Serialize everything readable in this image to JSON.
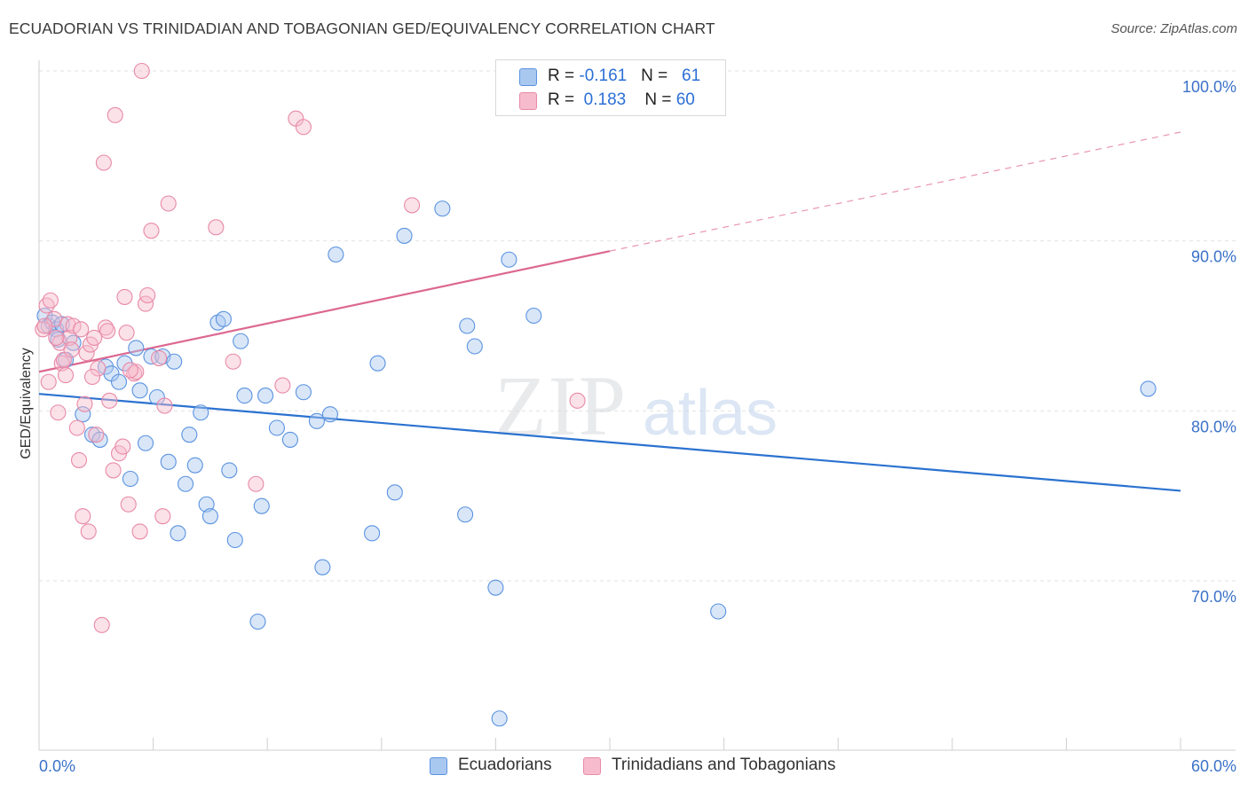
{
  "header": {
    "title": "ECUADORIAN VS TRINIDADIAN AND TOBAGONIAN GED/EQUIVALENCY CORRELATION CHART",
    "source": "Source: ZipAtlas.com"
  },
  "legend": {
    "rows": [
      {
        "r_label": "R = ",
        "r_value": "-0.161",
        "n_label": "N = ",
        "n_value": "61",
        "color": "#a9c8f0"
      },
      {
        "r_label": "R = ",
        "r_value": "0.183",
        "n_label": "N = ",
        "n_value": "60",
        "color": "#f6bccd"
      }
    ]
  },
  "watermark": {
    "zip": "ZIP",
    "atlas": "atlas"
  },
  "chart_data": {
    "type": "scatter",
    "title": "ECUADORIAN VS TRINIDADIAN AND TOBAGONIAN GED/EQUIVALENCY CORRELATION CHART",
    "xlabel": "",
    "ylabel": "GED/Equivalency",
    "xlim": [
      0,
      60
    ],
    "ylim": [
      60,
      102
    ],
    "x_tick_labels": [
      "0.0%",
      "60.0%"
    ],
    "y_ticks": [
      70,
      80,
      90,
      100
    ],
    "y_tick_labels": [
      "70.0%",
      "80.0%",
      "90.0%",
      "100.0%"
    ],
    "grid": true,
    "legend_position": "top-center",
    "series": [
      {
        "name": "Ecuadorians",
        "color": "#5b93e0",
        "fill": "#a9c8f0",
        "trend": {
          "x": [
            0,
            60
          ],
          "y": [
            81.0,
            75.3
          ],
          "color": "#2b72d0"
        },
        "points": [
          [
            0.3,
            85.6
          ],
          [
            0.5,
            85.0
          ],
          [
            0.7,
            85.2
          ],
          [
            0.9,
            84.8
          ],
          [
            1.0,
            84.2
          ],
          [
            1.4,
            83.0
          ],
          [
            1.8,
            84.0
          ],
          [
            2.3,
            79.8
          ],
          [
            2.8,
            78.6
          ],
          [
            3.2,
            78.3
          ],
          [
            3.5,
            82.6
          ],
          [
            3.8,
            82.2
          ],
          [
            4.2,
            81.7
          ],
          [
            4.5,
            82.8
          ],
          [
            4.8,
            76.0
          ],
          [
            5.1,
            83.7
          ],
          [
            5.3,
            81.2
          ],
          [
            5.6,
            78.1
          ],
          [
            5.9,
            83.2
          ],
          [
            6.2,
            80.8
          ],
          [
            6.5,
            83.2
          ],
          [
            6.8,
            77.0
          ],
          [
            7.1,
            82.9
          ],
          [
            7.3,
            72.8
          ],
          [
            7.7,
            75.7
          ],
          [
            7.9,
            78.6
          ],
          [
            8.2,
            76.8
          ],
          [
            8.5,
            79.9
          ],
          [
            8.8,
            74.5
          ],
          [
            9.0,
            73.8
          ],
          [
            9.4,
            85.2
          ],
          [
            9.7,
            85.4
          ],
          [
            10.0,
            76.5
          ],
          [
            10.3,
            72.4
          ],
          [
            10.6,
            84.1
          ],
          [
            10.8,
            80.9
          ],
          [
            11.5,
            67.6
          ],
          [
            11.7,
            74.4
          ],
          [
            11.9,
            80.9
          ],
          [
            12.5,
            79.0
          ],
          [
            13.2,
            78.3
          ],
          [
            13.9,
            81.1
          ],
          [
            14.6,
            79.4
          ],
          [
            14.9,
            70.8
          ],
          [
            15.3,
            79.8
          ],
          [
            15.6,
            89.2
          ],
          [
            17.5,
            72.8
          ],
          [
            17.8,
            82.8
          ],
          [
            18.7,
            75.2
          ],
          [
            19.2,
            90.3
          ],
          [
            21.2,
            91.9
          ],
          [
            22.4,
            73.9
          ],
          [
            22.5,
            85.0
          ],
          [
            22.9,
            83.8
          ],
          [
            24.0,
            69.6
          ],
          [
            24.2,
            61.9
          ],
          [
            24.7,
            88.9
          ],
          [
            26.0,
            85.6
          ],
          [
            35.7,
            68.2
          ],
          [
            58.3,
            81.3
          ],
          [
            1.2,
            85.1
          ]
        ]
      },
      {
        "name": "Trinidadians and Tobagonians",
        "color": "#e88aa8",
        "fill": "#f6bccd",
        "trend": {
          "x": [
            0,
            30
          ],
          "y": [
            82.3,
            89.4
          ],
          "color": "#dc6890"
        },
        "trend_extension": {
          "x": [
            30,
            60
          ],
          "y": [
            89.4,
            96.4
          ],
          "color": "#e896b0"
        },
        "points": [
          [
            0.2,
            84.8
          ],
          [
            0.4,
            86.2
          ],
          [
            0.5,
            81.7
          ],
          [
            0.6,
            86.5
          ],
          [
            0.8,
            85.4
          ],
          [
            1.0,
            79.9
          ],
          [
            1.1,
            84.0
          ],
          [
            1.2,
            82.8
          ],
          [
            1.4,
            82.1
          ],
          [
            1.5,
            85.1
          ],
          [
            1.6,
            84.3
          ],
          [
            1.8,
            85.0
          ],
          [
            2.0,
            79.0
          ],
          [
            2.1,
            77.1
          ],
          [
            2.3,
            73.8
          ],
          [
            2.4,
            80.4
          ],
          [
            2.5,
            83.4
          ],
          [
            2.6,
            72.9
          ],
          [
            2.7,
            83.9
          ],
          [
            2.9,
            84.3
          ],
          [
            3.0,
            78.6
          ],
          [
            3.1,
            82.5
          ],
          [
            3.3,
            67.4
          ],
          [
            3.4,
            94.6
          ],
          [
            3.5,
            84.9
          ],
          [
            3.7,
            80.6
          ],
          [
            3.9,
            76.5
          ],
          [
            4.0,
            97.4
          ],
          [
            4.2,
            77.5
          ],
          [
            4.4,
            77.9
          ],
          [
            4.5,
            86.7
          ],
          [
            4.6,
            84.6
          ],
          [
            4.7,
            74.5
          ],
          [
            5.0,
            82.2
          ],
          [
            5.1,
            82.3
          ],
          [
            5.3,
            72.9
          ],
          [
            5.4,
            100.0
          ],
          [
            5.6,
            86.3
          ],
          [
            5.7,
            86.8
          ],
          [
            5.9,
            90.6
          ],
          [
            6.3,
            83.1
          ],
          [
            6.5,
            73.8
          ],
          [
            6.6,
            80.3
          ],
          [
            6.8,
            92.2
          ],
          [
            9.3,
            90.8
          ],
          [
            10.2,
            82.9
          ],
          [
            11.4,
            75.7
          ],
          [
            12.8,
            81.5
          ],
          [
            13.5,
            97.2
          ],
          [
            13.9,
            96.7
          ],
          [
            19.6,
            92.1
          ],
          [
            28.3,
            80.6
          ],
          [
            0.3,
            85.0
          ],
          [
            1.3,
            83.0
          ],
          [
            2.2,
            84.8
          ],
          [
            2.8,
            82.0
          ],
          [
            3.6,
            84.7
          ],
          [
            4.8,
            82.4
          ],
          [
            0.9,
            84.3
          ],
          [
            1.7,
            83.6
          ]
        ]
      }
    ]
  }
}
